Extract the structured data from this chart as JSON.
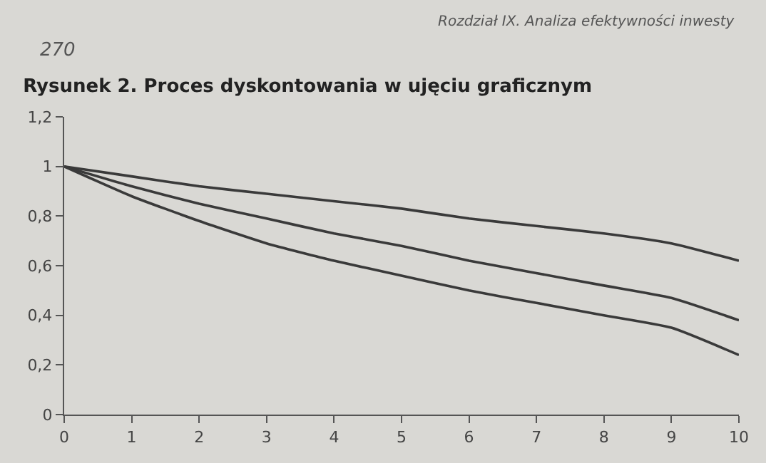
{
  "chart_data": {
    "type": "line",
    "title": "Rysunek 2. Proces dyskontowania w ujęciu graficznym",
    "annotations": [
      "270",
      "Rozdział IX. Analiza efektywności inwesty"
    ],
    "x": [
      0,
      1,
      2,
      3,
      4,
      5,
      6,
      7,
      8,
      9,
      10
    ],
    "series": [
      {
        "color": "#3a3a3a",
        "values": [
          1,
          0.96,
          0.92,
          0.89,
          0.86,
          0.83,
          0.79,
          0.76,
          0.73,
          0.69,
          0.62
        ]
      },
      {
        "color": "#3a3a3a",
        "values": [
          1,
          0.92,
          0.85,
          0.79,
          0.73,
          0.68,
          0.62,
          0.57,
          0.52,
          0.47,
          0.38
        ]
      },
      {
        "color": "#3a3a3a",
        "values": [
          1,
          0.88,
          0.78,
          0.69,
          0.62,
          0.56,
          0.5,
          0.45,
          0.4,
          0.35,
          0.24
        ]
      }
    ],
    "xlim": [
      0,
      10
    ],
    "xticks": [
      0,
      1,
      2,
      3,
      4,
      5,
      6,
      7,
      8,
      9,
      10
    ],
    "ylim": [
      0,
      1.2
    ],
    "yticks": [
      0,
      {
        "value": 0.2,
        "label": "0,2"
      },
      {
        "value": 0.4,
        "label": "0,4"
      },
      {
        "value": 0.6,
        "label": "0,6"
      },
      {
        "value": 0.8,
        "label": "0,8"
      },
      1,
      {
        "value": 1.2,
        "label": "1,2"
      }
    ],
    "grid": false,
    "marker": "none",
    "line_style": "solid"
  }
}
